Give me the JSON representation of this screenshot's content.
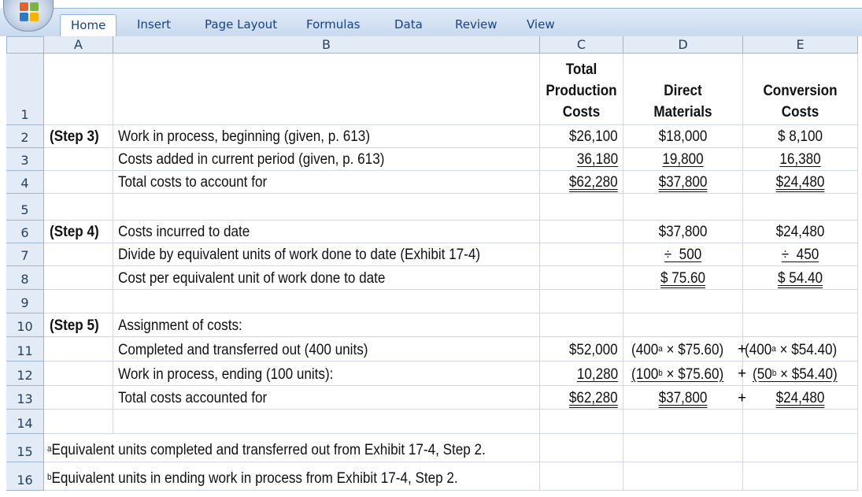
{
  "ribbon": {
    "tabs": [
      "Home",
      "Insert",
      "Page Layout",
      "Formulas",
      "Data",
      "Review",
      "View"
    ],
    "active_tab": "Home"
  },
  "columns": [
    "A",
    "B",
    "C",
    "D",
    "E"
  ],
  "rows": [
    "1",
    "2",
    "3",
    "4",
    "5",
    "6",
    "7",
    "8",
    "9",
    "10",
    "11",
    "12",
    "13",
    "14",
    "15",
    "16"
  ],
  "header": {
    "c": [
      "Total",
      "Production",
      "Costs"
    ],
    "d": [
      "Direct",
      "Materials"
    ],
    "e": [
      "Conversion",
      "Costs"
    ]
  },
  "step3": {
    "label": "(Step 3)",
    "r2": {
      "b": "Work in process, beginning (given, p. 613)",
      "c": "$26,100",
      "d": "$18,000",
      "e": "$ 8,100"
    },
    "r3": {
      "b": "Costs added in current period (given, p. 613)",
      "c": "36,180",
      "d": "19,800",
      "e": "16,380"
    },
    "r4": {
      "b": "Total costs to account for",
      "c": "$62,280",
      "d": "$37,800",
      "e": "$24,480"
    }
  },
  "step4": {
    "label": "(Step 4)",
    "r6": {
      "b": "Costs incurred to date",
      "d": "$37,800",
      "e": "$24,480"
    },
    "r7": {
      "b": "Divide by equivalent units of work done to date (Exhibit 17-4)",
      "d": "÷  500",
      "e": "÷  450"
    },
    "r8": {
      "b": "Cost per equivalent unit of work done to date",
      "d": "$ 75.60",
      "e": "$ 54.40"
    }
  },
  "step5": {
    "label": "(Step 5)",
    "r10": {
      "b": "Assignment of costs:"
    },
    "r11": {
      "b": "Completed and transferred out (400 units)",
      "c": "$52,000",
      "d_num": "(400",
      "d_sup": "a",
      "d_rest": " × $75.60)",
      "e_num": "(400",
      "e_sup": "a",
      "e_rest": " × $54.40)"
    },
    "r12": {
      "b": "Work in process, ending (100 units):",
      "c": "10,280",
      "d_num": "(100",
      "d_sup": "b",
      "d_rest": " × $75.60)",
      "e_num": "(50",
      "e_sup": "b",
      "e_rest": " × $54.40)"
    },
    "r13": {
      "b": "Total costs accounted for",
      "c": "$62,280",
      "d": "$37,800",
      "e": "$24,480"
    },
    "plus": "+"
  },
  "footnotes": {
    "a_sup": "a",
    "a_text": "Equivalent units completed and transferred out from Exhibit 17-4, Step 2.",
    "b_sup": "b",
    "b_text": "Equivalent units in ending work in process from Exhibit 17-4, Step 2."
  },
  "colors": {
    "ribbon_text": "#15428b",
    "header_bg": "#e3ebf6",
    "gridline": "#d0d7e5"
  }
}
